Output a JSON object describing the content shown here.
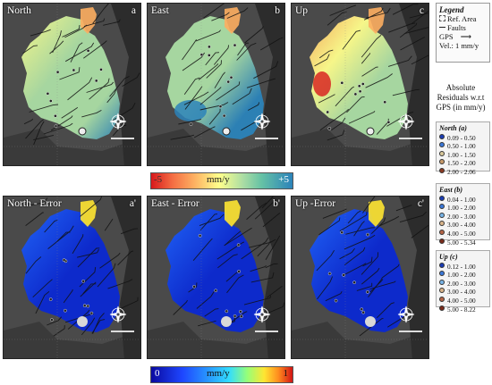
{
  "panels": [
    {
      "title": "North",
      "letter": "a",
      "scheme": "velocity"
    },
    {
      "title": "East",
      "letter": "b",
      "scheme": "velocity"
    },
    {
      "title": "Up",
      "letter": "c",
      "scheme": "velocity"
    },
    {
      "title": "North - Error",
      "letter": "a'",
      "scheme": "error"
    },
    {
      "title": "East - Error",
      "letter": "b'",
      "scheme": "error"
    },
    {
      "title": "Up -Error",
      "letter": "c'",
      "scheme": "error"
    }
  ],
  "colorbar_top": {
    "min": "-5",
    "unit": "mm/y",
    "max": "+5"
  },
  "colorbar_bottom": {
    "min": "0",
    "unit": "mm/y",
    "max": "1"
  },
  "legend": {
    "title": "Legend",
    "ref_area": "Ref. Area",
    "faults": "Faults",
    "gps": "GPS",
    "vel": "Vel.: 1 mm/y"
  },
  "residuals_title": [
    "Absolute",
    "Residuals w.r.t",
    "GPS (in mm/y)"
  ],
  "gps_groups": [
    {
      "heading": "North (a)",
      "ranges": [
        "0.09 - 0.50",
        "0.50 - 1.00",
        "1.00 - 1.50",
        "1.50 - 2.00",
        "2.00 - 2.06"
      ]
    },
    {
      "heading": "East (b)",
      "ranges": [
        "0.04 - 1.00",
        "1.00 - 2.00",
        "2.00 - 3.00",
        "3.00 - 4.00",
        "4.00 - 5.00",
        "5.00 - 5.34"
      ]
    },
    {
      "heading": "Up (c)",
      "ranges": [
        "0.12 - 1.00",
        "1.00 - 2.00",
        "2.00 - 3.00",
        "3.00 - 4.00",
        "4.00 - 5.00",
        "5.00 - 8.22"
      ]
    }
  ],
  "colors": {
    "panel_bg": "#3d3d3d",
    "velocity_scale": [
      "#d7191c",
      "#fdae61",
      "#ffff8c",
      "#abdda4",
      "#2b83ba"
    ],
    "error_scale": [
      "#0a28d2",
      "#1e64ff",
      "#32c8ff",
      "#ffe632",
      "#e62814"
    ],
    "dot_scale": [
      "#1a3cb4",
      "#3a78d8",
      "#78b4e6",
      "#d8b48a",
      "#b46446",
      "#7a2a1a"
    ]
  }
}
